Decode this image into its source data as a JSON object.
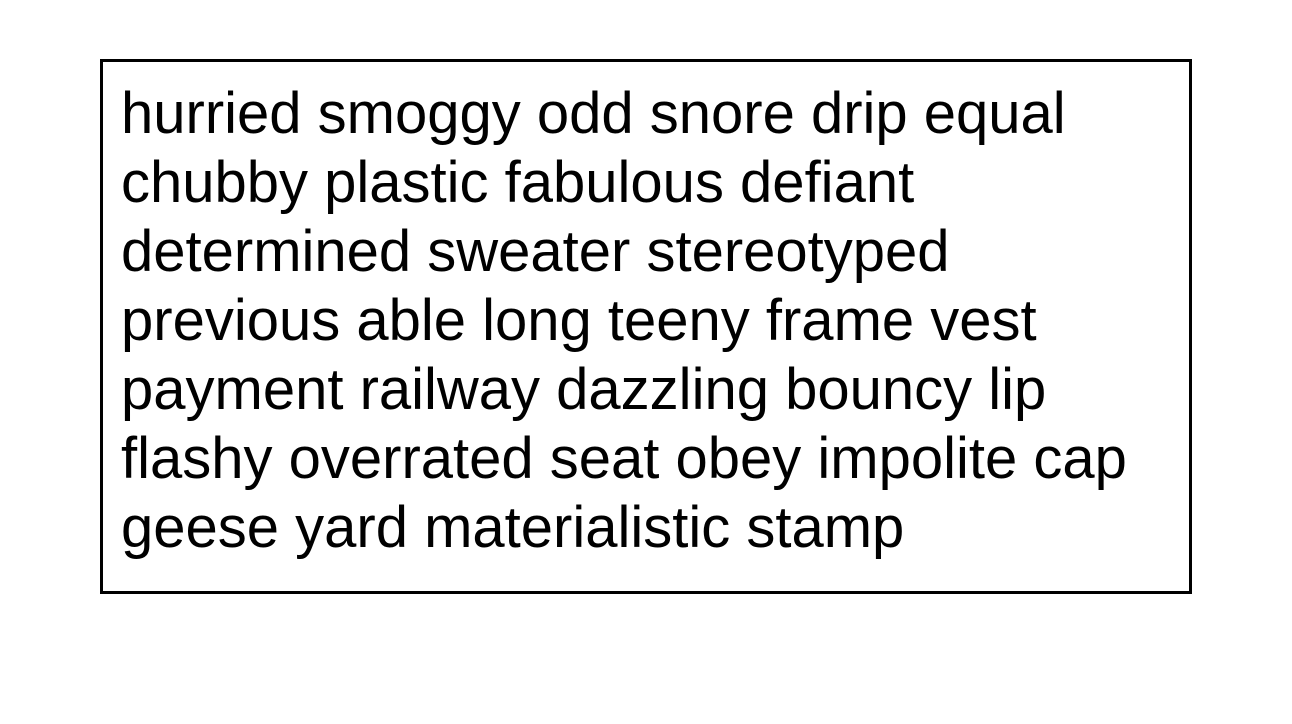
{
  "text_box": {
    "lines": [
      "hurried smoggy odd snore drip equal",
      "chubby plastic fabulous defiant",
      "determined sweater stereotyped",
      "previous able long teeny frame vest",
      "payment railway dazzling bouncy lip",
      "flashy overrated seat obey impolite cap",
      "geese yard materialistic stamp"
    ]
  }
}
